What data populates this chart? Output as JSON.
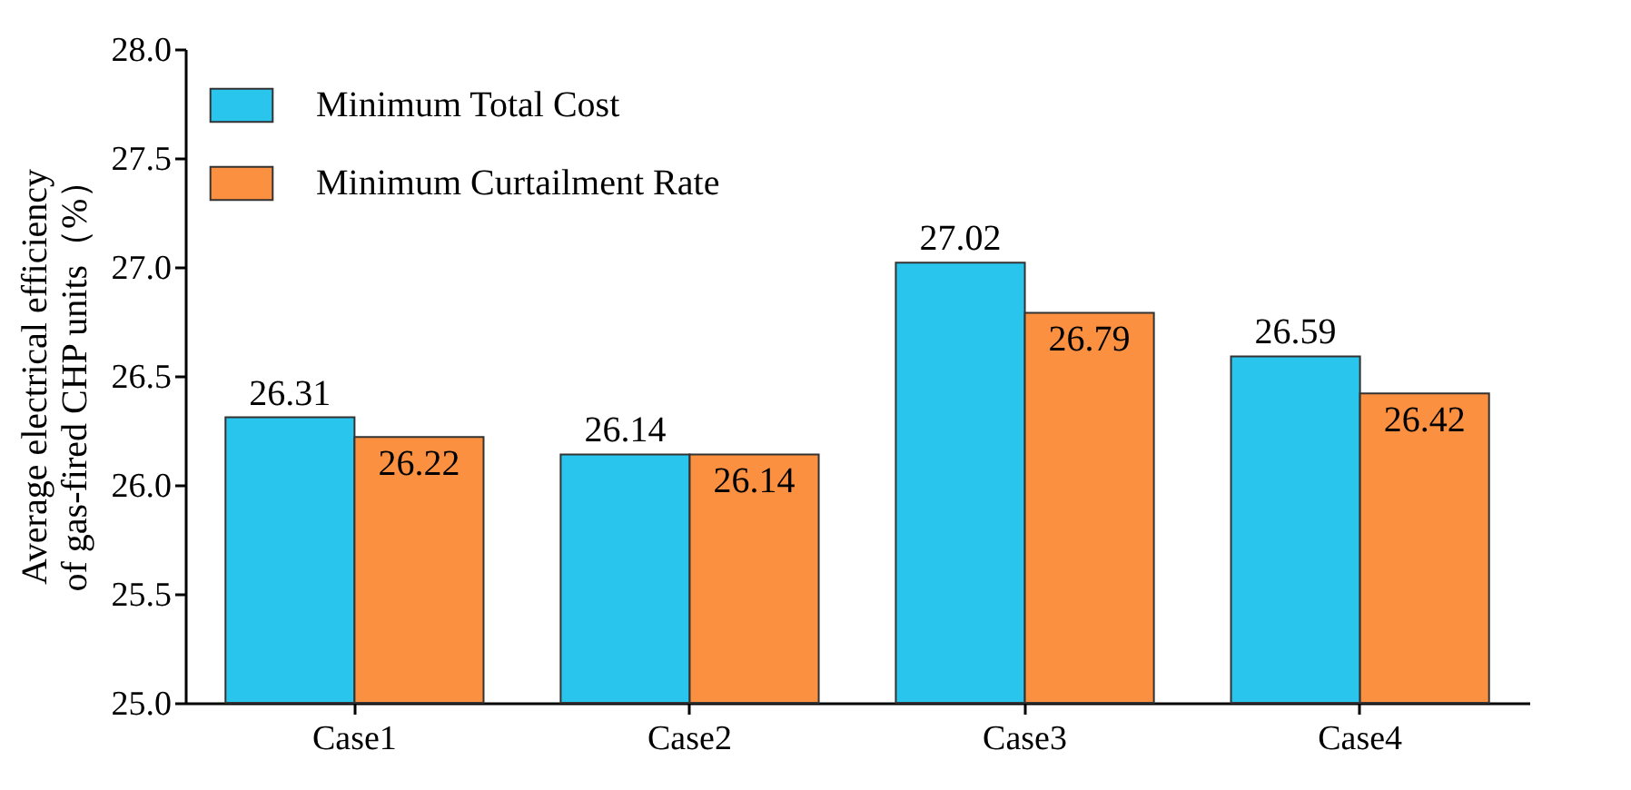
{
  "chart_data": {
    "type": "bar",
    "ylabel": "Average electrical efficiency\nof gas-fired CHP units（%）",
    "categories": [
      "Case1",
      "Case2",
      "Case3",
      "Case4"
    ],
    "series": [
      {
        "name": "Minimum Total Cost",
        "color": "#29c5ec",
        "values": [
          26.31,
          26.14,
          27.02,
          26.59
        ]
      },
      {
        "name": "Minimum Curtailment Rate",
        "color": "#fb9040",
        "values": [
          26.22,
          26.14,
          26.79,
          26.42
        ]
      }
    ],
    "ylim": [
      25.0,
      28.0
    ],
    "yticks": [
      {
        "value": 25,
        "label": "25.0"
      },
      {
        "value": 25.5,
        "label": "25.5"
      },
      {
        "value": 26,
        "label": "26.0"
      },
      {
        "value": 26.5,
        "label": "26.5"
      },
      {
        "value": 27,
        "label": "27.0"
      },
      {
        "value": 27.5,
        "label": "27.5"
      },
      {
        "value": 28,
        "label": "28.0"
      }
    ],
    "data_labels": true,
    "legend": "top left",
    "grid": false
  }
}
